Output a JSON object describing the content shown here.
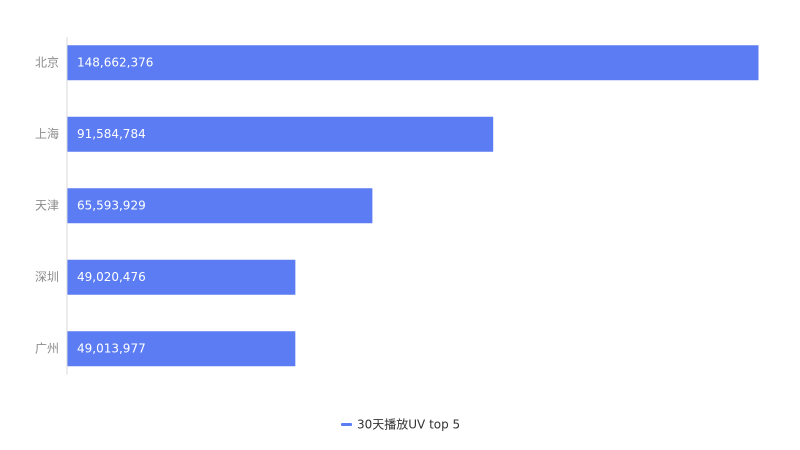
{
  "chart_data": {
    "type": "bar",
    "orientation": "horizontal",
    "categories": [
      "北京",
      "上海",
      "天津",
      "深圳",
      "广州"
    ],
    "series": [
      {
        "name": "30天播放UV top 5",
        "values": [
          148662376,
          91584784,
          65593929,
          49020476,
          49013977
        ],
        "value_labels": [
          "148,662,376",
          "91,584,784",
          "65,593,929",
          "49,020,476",
          "49,013,977"
        ]
      }
    ],
    "grid": false,
    "legend_position": "bottom-center",
    "colors": {
      "bar": "#5b7cf2",
      "axis": "#d9d9d9",
      "category_text": "#8c8c8c",
      "legend_text": "#333333"
    }
  }
}
